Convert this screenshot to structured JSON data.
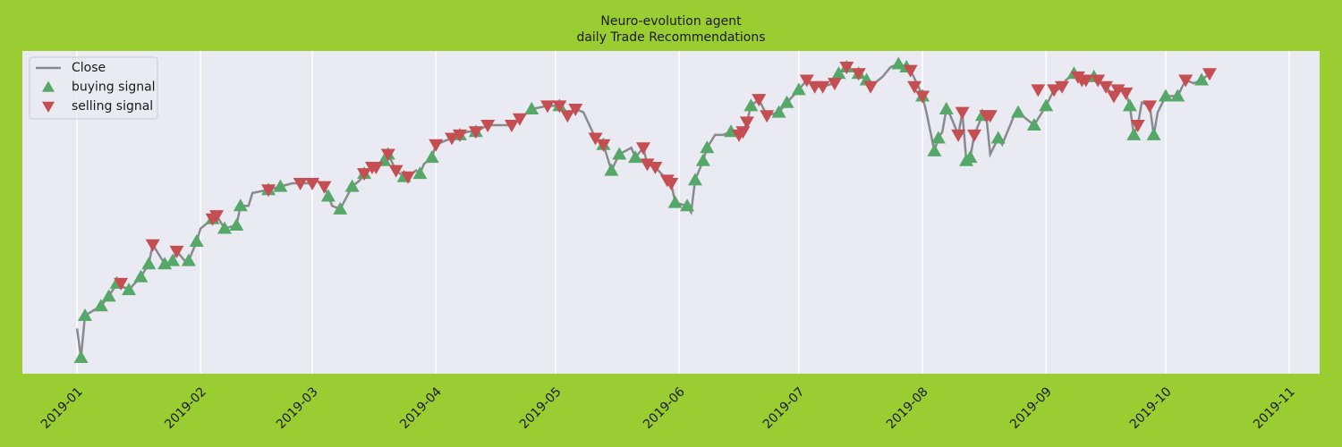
{
  "chart_data": {
    "type": "line",
    "title": [
      "Neuro-evolution agent",
      "daily Trade Recommendations"
    ],
    "xlim": [
      -13.7,
      311.6
    ],
    "xticks": [
      {
        "value": 0,
        "label": "2019-01"
      },
      {
        "value": 31,
        "label": "2019-02"
      },
      {
        "value": 59,
        "label": "2019-03"
      },
      {
        "value": 90,
        "label": "2019-04"
      },
      {
        "value": 120,
        "label": "2019-05"
      },
      {
        "value": 151,
        "label": "2019-06"
      },
      {
        "value": 181,
        "label": "2019-07"
      },
      {
        "value": 212,
        "label": "2019-08"
      },
      {
        "value": 243,
        "label": "2019-09"
      },
      {
        "value": 273,
        "label": "2019-10"
      },
      {
        "value": 304,
        "label": "2019-11"
      }
    ],
    "ylim": [
      0,
      100
    ],
    "grid": true,
    "legend": "upper left",
    "series": [
      {
        "name": "Close",
        "color": "#8a8a8e",
        "marker": "line",
        "x": [
          0,
          1,
          2,
          6,
          8,
          10,
          13,
          16,
          18,
          19,
          22,
          24,
          25,
          27,
          28,
          30,
          31,
          34,
          35,
          37,
          40,
          41,
          43,
          44,
          48,
          51,
          54,
          57,
          59,
          60,
          62,
          63,
          64,
          66,
          69,
          71,
          72,
          74,
          76,
          77,
          78,
          80,
          82,
          83,
          85,
          86,
          87,
          89,
          90,
          94,
          96,
          98,
          100,
          103,
          107,
          109,
          111,
          114,
          118,
          121,
          123,
          125,
          127,
          130,
          132,
          134,
          136,
          139,
          140,
          142,
          143,
          145,
          148,
          149,
          150,
          153,
          154,
          155,
          157,
          158,
          160,
          162,
          164,
          166,
          167,
          168,
          169,
          171,
          173,
          176,
          178,
          181,
          183,
          185,
          187,
          190,
          191,
          193,
          196,
          198,
          199,
          201,
          202,
          204,
          206,
          208,
          209,
          211,
          212,
          213,
          215,
          216,
          217,
          218,
          219,
          221,
          222,
          223,
          224,
          225,
          227,
          228,
          229,
          231,
          232,
          233,
          235,
          236,
          238,
          240,
          243,
          245,
          246,
          247,
          248,
          250,
          252,
          254,
          255,
          256,
          258,
          260,
          261,
          263,
          264,
          265,
          266,
          267,
          269,
          270,
          271,
          273,
          276,
          278,
          280,
          282,
          283,
          284
        ],
        "values": [
          14,
          5,
          18,
          21,
          24,
          28,
          26,
          30,
          34,
          40,
          34,
          35,
          38,
          35,
          35,
          41,
          45,
          48,
          49,
          45,
          46,
          52,
          52,
          56,
          57,
          58,
          59,
          59,
          59,
          60,
          58,
          55,
          52,
          51,
          58,
          60,
          62,
          64,
          65,
          66,
          68,
          63,
          61,
          61,
          63,
          62,
          65,
          67,
          71,
          73,
          74,
          75,
          75,
          77,
          77,
          77,
          79,
          82,
          83,
          83,
          80,
          82,
          81,
          73,
          71,
          63,
          68,
          70,
          67,
          70,
          65,
          64,
          60,
          59,
          53,
          52,
          50,
          60,
          66,
          70,
          74,
          74,
          75,
          74,
          75,
          78,
          83,
          85,
          80,
          81,
          84,
          88,
          91,
          89,
          89,
          90,
          93,
          95,
          93,
          91,
          89,
          91,
          92,
          95,
          96,
          95,
          94,
          89,
          86,
          81,
          69,
          73,
          75,
          82,
          80,
          74,
          81,
          66,
          67,
          74,
          80,
          80,
          68,
          73,
          71,
          74,
          80,
          81,
          79,
          77,
          83,
          88,
          88,
          89,
          91,
          93,
          91,
          92,
          92,
          91,
          89,
          86,
          88,
          87,
          83,
          74,
          77,
          84,
          83,
          74,
          81,
          86,
          86,
          91,
          90,
          91,
          92,
          93
        ]
      },
      {
        "name": "buying signal",
        "color": "#55a868",
        "marker": "^",
        "x": [
          1,
          2,
          6,
          8,
          10,
          13,
          16,
          18,
          22,
          24,
          28,
          30,
          34,
          37,
          40,
          41,
          48,
          51,
          63,
          66,
          69,
          72,
          77,
          78,
          82,
          86,
          89,
          96,
          100,
          114,
          121,
          132,
          134,
          136,
          140,
          150,
          153,
          155,
          157,
          158,
          164,
          169,
          176,
          178,
          181,
          191,
          193,
          196,
          198,
          206,
          208,
          212,
          215,
          216,
          218,
          223,
          224,
          227,
          231,
          236,
          240,
          243,
          250,
          255,
          264,
          265,
          270,
          273,
          276,
          282
        ],
        "values": [
          5,
          18,
          21,
          24,
          28,
          26,
          30,
          34,
          34,
          35,
          35,
          41,
          48,
          45,
          46,
          52,
          57,
          58,
          55,
          51,
          58,
          62,
          66,
          68,
          61,
          62,
          67,
          74,
          75,
          82,
          83,
          71,
          63,
          68,
          67,
          53,
          52,
          60,
          66,
          70,
          75,
          83,
          81,
          84,
          88,
          93,
          95,
          93,
          91,
          96,
          95,
          86,
          69,
          73,
          82,
          66,
          67,
          80,
          73,
          81,
          77,
          83,
          93,
          92,
          83,
          74,
          74,
          86,
          86,
          91
        ]
      },
      {
        "name": "selling signal",
        "color": "#c44e52",
        "marker": "v",
        "x": [
          11,
          19,
          25,
          34,
          35,
          48,
          56,
          59,
          62,
          72,
          74,
          75,
          78,
          80,
          83,
          90,
          94,
          96,
          100,
          103,
          109,
          111,
          118,
          121,
          123,
          125,
          130,
          132,
          142,
          143,
          145,
          148,
          149,
          166,
          167,
          168,
          171,
          173,
          183,
          185,
          187,
          190,
          193,
          196,
          199,
          209,
          210,
          212,
          221,
          222,
          225,
          228,
          229,
          241,
          245,
          247,
          251,
          252,
          253,
          256,
          258,
          260,
          261,
          263,
          266,
          269,
          278,
          284
        ],
        "values": [
          28,
          40,
          38,
          48,
          49,
          57,
          59,
          59,
          58,
          62,
          64,
          64,
          68,
          63,
          61,
          71,
          73,
          74,
          75,
          77,
          77,
          79,
          83,
          83,
          80,
          82,
          73,
          71,
          70,
          65,
          64,
          60,
          59,
          74,
          75,
          78,
          85,
          80,
          91,
          89,
          89,
          90,
          95,
          93,
          89,
          94,
          89,
          86,
          74,
          81,
          74,
          80,
          80,
          88,
          88,
          89,
          92,
          91,
          91,
          91,
          89,
          86,
          88,
          87,
          77,
          83,
          91,
          93
        ]
      }
    ]
  }
}
